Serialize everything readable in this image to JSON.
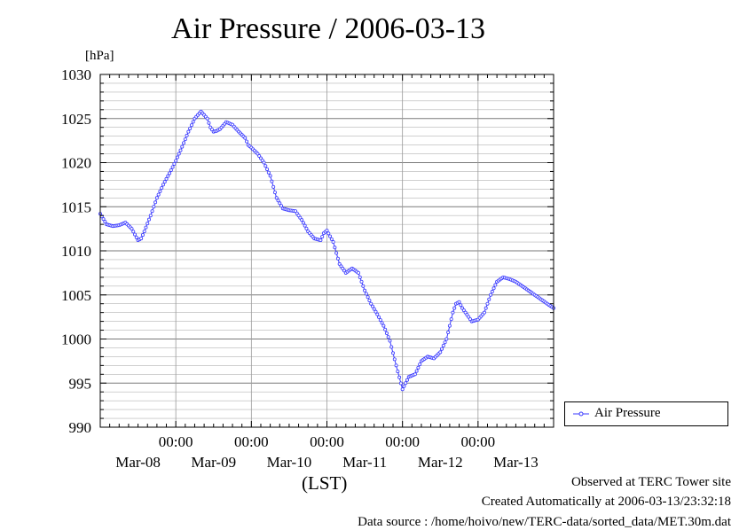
{
  "chart_data": {
    "type": "line",
    "title": "Air Pressure / 2006-03-13",
    "ylabel": "[hPa]",
    "xlabel": "(LST)",
    "ylim": [
      990,
      1030
    ],
    "ytick_step": 5,
    "ytick_labels": [
      "990",
      "995",
      "1000",
      "1005",
      "1010",
      "1015",
      "1020",
      "1025",
      "1030"
    ],
    "x_range_hours": [
      0,
      144
    ],
    "x_time_label": "00:00",
    "x_day_labels": [
      "Mar-08",
      "Mar-09",
      "Mar-10",
      "Mar-11",
      "Mar-12",
      "Mar-13"
    ],
    "x_midnights_hours": [
      24,
      48,
      72,
      96,
      120
    ],
    "grid": true,
    "legend_position": "right",
    "series": [
      {
        "name": "Air Pressure",
        "color": "#3a3aff",
        "marker": "open-circle",
        "x_hours": [
          0,
          2,
          4,
          6,
          8,
          10,
          12,
          13,
          14,
          16,
          18,
          20,
          22,
          24,
          26,
          28,
          30,
          32,
          34,
          35,
          36,
          37,
          38,
          40,
          42,
          44,
          46,
          47,
          48,
          50,
          52,
          54,
          56,
          58,
          60,
          62,
          64,
          66,
          68,
          70,
          71,
          72,
          74,
          76,
          78,
          80,
          82,
          84,
          86,
          88,
          90,
          92,
          94,
          96,
          98,
          100,
          102,
          104,
          106,
          108,
          110,
          111,
          112,
          113,
          114,
          115,
          116,
          117,
          118,
          120,
          122,
          124,
          126,
          128,
          130,
          132,
          134,
          136,
          138,
          140,
          142,
          144
        ],
        "values": [
          1014.2,
          1013.0,
          1012.8,
          1012.9,
          1013.2,
          1012.5,
          1011.2,
          1011.4,
          1012.2,
          1014.0,
          1016.0,
          1017.5,
          1018.8,
          1020.2,
          1021.8,
          1023.5,
          1025.0,
          1025.8,
          1025.0,
          1024.0,
          1023.5,
          1023.6,
          1023.8,
          1024.6,
          1024.3,
          1023.5,
          1022.8,
          1022.0,
          1021.7,
          1021.0,
          1020.0,
          1018.5,
          1016.0,
          1014.8,
          1014.6,
          1014.5,
          1013.5,
          1012.2,
          1011.4,
          1011.2,
          1012.0,
          1012.3,
          1011.0,
          1008.5,
          1007.5,
          1008.0,
          1007.5,
          1005.5,
          1004.0,
          1002.8,
          1001.5,
          999.8,
          997.0,
          994.3,
          995.7,
          996.0,
          997.5,
          998.0,
          997.8,
          998.5,
          1000.0,
          1001.5,
          1003.0,
          1004.0,
          1004.2,
          1003.5,
          1003.0,
          1002.5,
          1002.0,
          1002.2,
          1003.0,
          1005.0,
          1006.5,
          1007.0,
          1006.8,
          1006.5,
          1006.0,
          1005.5,
          1005.0,
          1004.5,
          1004.0,
          1003.5
        ]
      }
    ]
  },
  "footer": {
    "line1": "Observed at TERC Tower site",
    "line2": "Created Automatically at 2006-03-13/23:32:18",
    "line3": "Data source : /home/hoivo/new/TERC-data/sorted_data/MET.30m.dat"
  }
}
